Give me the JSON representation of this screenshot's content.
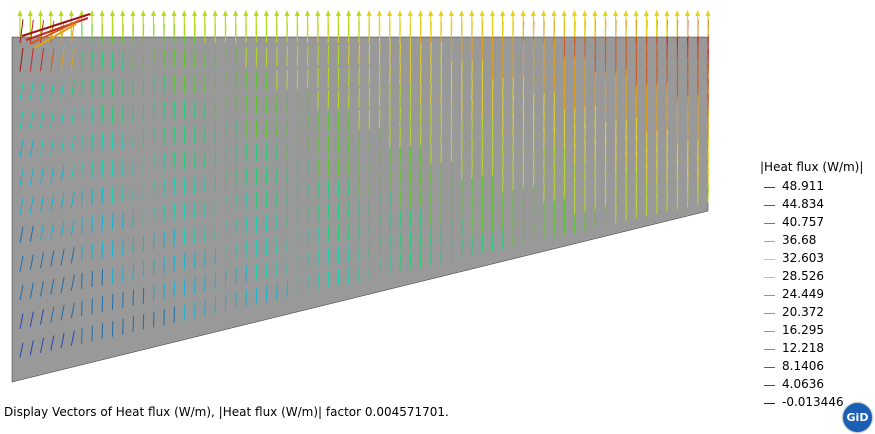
{
  "status_text": "Display Vectors of Heat flux (W/m), |Heat flux (W/m)| factor 0.004571701.",
  "legend": {
    "title": "|Heat flux (W/m)|",
    "items": [
      {
        "label": "48.911",
        "color": "#a01414"
      },
      {
        "label": "44.834",
        "color": "#c82828"
      },
      {
        "label": "40.757",
        "color": "#d25a1e"
      },
      {
        "label": "36.68",
        "color": "#e6a014"
      },
      {
        "label": "32.603",
        "color": "#e6d21e"
      },
      {
        "label": "28.526",
        "color": "#b4dc1e"
      },
      {
        "label": "24.449",
        "color": "#5ac828"
      },
      {
        "label": "20.372",
        "color": "#1ed278"
      },
      {
        "label": "16.295",
        "color": "#14d2b4"
      },
      {
        "label": "12.218",
        "color": "#14b4d2"
      },
      {
        "label": "8.1406",
        "color": "#1e6eaa"
      },
      {
        "label": "4.0636",
        "color": "#2846b4"
      },
      {
        "label": "-0.013446",
        "color": "#14148c"
      }
    ]
  },
  "logo": {
    "text": "GiD"
  },
  "colors": {
    "domain": "#999999",
    "background": "#ffffff"
  }
}
